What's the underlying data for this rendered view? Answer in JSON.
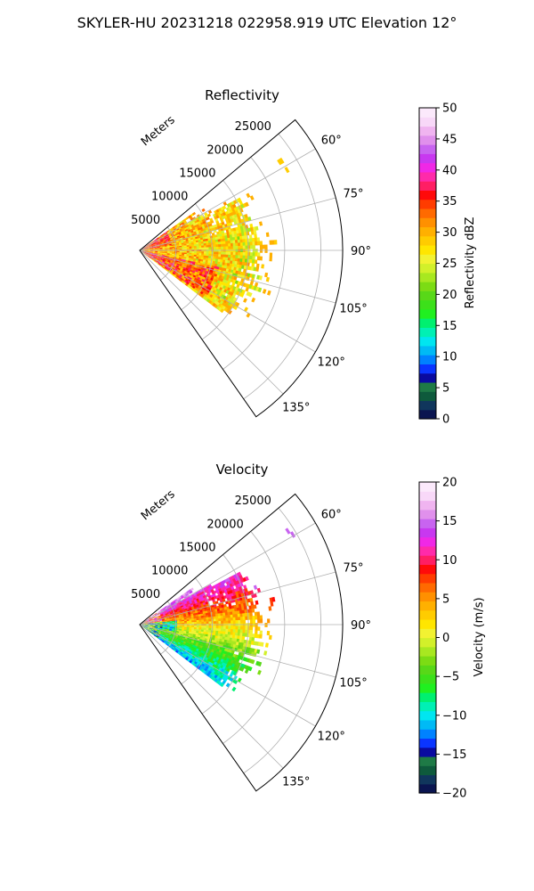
{
  "suptitle": "SKYLER-HU  20231218  022958.919 UTC Elevation 12°",
  "chart_data": [
    {
      "type": "heatmap",
      "subtype": "polar-ppi-sector",
      "title": "Reflectivity",
      "radial_axis_label": "Meters",
      "radial_ticks": [
        5000,
        10000,
        15000,
        20000,
        25000
      ],
      "radial_tick_labels": [
        "5000",
        "10000",
        "15000",
        "20000",
        "25000"
      ],
      "rlim": [
        0,
        28000
      ],
      "azimuth_range_deg": [
        50,
        145
      ],
      "azimuth_ticks": [
        60,
        75,
        90,
        105,
        120,
        135
      ],
      "azimuth_tick_labels": [
        "60°",
        "75°",
        "90°",
        "105°",
        "120°",
        "135°"
      ],
      "grid": true,
      "colorbar": {
        "label": "Reflectivity dBZ",
        "min": 0,
        "max": 50,
        "ticks": [
          0,
          5,
          10,
          15,
          20,
          25,
          30,
          35,
          40,
          45,
          50
        ],
        "tick_labels": [
          "0",
          "5",
          "10",
          "15",
          "20",
          "25",
          "30",
          "35",
          "40",
          "45",
          "50"
        ],
        "colors": [
          "#0a1550",
          "#10365c",
          "#0e5a3c",
          "#1e7a46",
          "#0a0aa0",
          "#0a35ff",
          "#0082ff",
          "#00baf5",
          "#00e6f0",
          "#00f0b4",
          "#00f070",
          "#20f020",
          "#3ce01a",
          "#58d818",
          "#7cdc14",
          "#a8e820",
          "#d2f02a",
          "#f2f232",
          "#ffe600",
          "#ffcc00",
          "#ffb000",
          "#ff9000",
          "#ff6a00",
          "#ff3c00",
          "#ff0a0a",
          "#ff1e64",
          "#ff2aaa",
          "#f028e6",
          "#c838f0",
          "#c864f0",
          "#e090ec",
          "#f0b4f0",
          "#f8d8f8",
          "#fbe9fb"
        ]
      }
    },
    {
      "type": "heatmap",
      "subtype": "polar-ppi-sector",
      "title": "Velocity",
      "radial_axis_label": "Meters",
      "radial_ticks": [
        5000,
        10000,
        15000,
        20000,
        25000
      ],
      "radial_tick_labels": [
        "5000",
        "10000",
        "15000",
        "20000",
        "25000"
      ],
      "rlim": [
        0,
        28000
      ],
      "azimuth_range_deg": [
        50,
        145
      ],
      "azimuth_ticks": [
        60,
        75,
        90,
        105,
        120,
        135
      ],
      "azimuth_tick_labels": [
        "60°",
        "75°",
        "90°",
        "105°",
        "120°",
        "135°"
      ],
      "grid": true,
      "colorbar": {
        "label": "Velocity (m/s)",
        "min": -20,
        "max": 20,
        "ticks": [
          -20,
          -15,
          -10,
          -5,
          0,
          5,
          10,
          15,
          20
        ],
        "tick_labels": [
          "−20",
          "−15",
          "−10",
          "−5",
          "0",
          "5",
          "10",
          "15",
          "20"
        ],
        "colors": [
          "#0a1550",
          "#10365c",
          "#0e5a3c",
          "#1e7a46",
          "#0a0aa0",
          "#0a35ff",
          "#0082ff",
          "#00baf5",
          "#00e6f0",
          "#00f0b4",
          "#00f070",
          "#20f020",
          "#3ce01a",
          "#58d818",
          "#7cdc14",
          "#a8e820",
          "#d2f02a",
          "#f2f232",
          "#ffe600",
          "#ffcc00",
          "#ffb000",
          "#ff9000",
          "#ff6a00",
          "#ff3c00",
          "#ff0a0a",
          "#ff1e64",
          "#ff2aaa",
          "#f028e6",
          "#c838f0",
          "#c864f0",
          "#e090ec",
          "#f0b4f0",
          "#f8d8f8",
          "#fbe9fb"
        ]
      }
    }
  ]
}
